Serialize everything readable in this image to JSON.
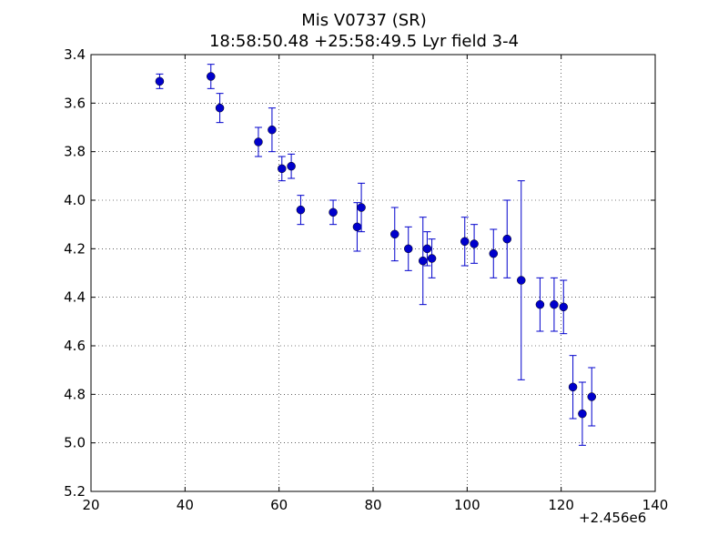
{
  "chart_data": {
    "type": "scatter",
    "title": "Mis V0737 (SR)",
    "subtitle": "18:58:50.48 +25:58:49.5 Lyr field 3-4",
    "xlabel": "",
    "ylabel": "",
    "x_offset_label": "+2.456e6",
    "xlim": [
      20,
      140
    ],
    "ylim": [
      3.4,
      5.2
    ],
    "y_inverted": true,
    "x_ticks": [
      20,
      40,
      60,
      80,
      100,
      120,
      140
    ],
    "y_ticks": [
      3.4,
      3.6,
      3.8,
      4.0,
      4.2,
      4.4,
      4.6,
      4.8,
      5.0,
      5.2
    ],
    "x_tick_labels": [
      "20",
      "40",
      "60",
      "80",
      "100",
      "120",
      "140"
    ],
    "y_tick_labels": [
      "3.4",
      "3.6",
      "3.8",
      "4.0",
      "4.2",
      "4.4",
      "4.6",
      "4.8",
      "5.0",
      "5.2"
    ],
    "grid": true,
    "marker_color": "#0000cc",
    "series": [
      {
        "points": [
          {
            "x": 34.6,
            "y": 3.51,
            "err": 0.03
          },
          {
            "x": 45.5,
            "y": 3.49,
            "err": 0.05
          },
          {
            "x": 47.4,
            "y": 3.62,
            "err": 0.06
          },
          {
            "x": 55.6,
            "y": 3.76,
            "err": 0.06
          },
          {
            "x": 58.5,
            "y": 3.71,
            "err": 0.09
          },
          {
            "x": 60.6,
            "y": 3.87,
            "err": 0.05
          },
          {
            "x": 62.6,
            "y": 3.86,
            "err": 0.05
          },
          {
            "x": 64.6,
            "y": 4.04,
            "err": 0.06
          },
          {
            "x": 71.5,
            "y": 4.05,
            "err": 0.05
          },
          {
            "x": 76.6,
            "y": 4.11,
            "err": 0.1
          },
          {
            "x": 77.5,
            "y": 4.03,
            "err": 0.1
          },
          {
            "x": 84.6,
            "y": 4.14,
            "err": 0.11
          },
          {
            "x": 87.5,
            "y": 4.2,
            "err": 0.09
          },
          {
            "x": 90.6,
            "y": 4.25,
            "err": 0.18
          },
          {
            "x": 91.5,
            "y": 4.2,
            "err": 0.07
          },
          {
            "x": 92.5,
            "y": 4.24,
            "err": 0.08
          },
          {
            "x": 99.5,
            "y": 4.17,
            "err": 0.1
          },
          {
            "x": 101.5,
            "y": 4.18,
            "err": 0.08
          },
          {
            "x": 105.6,
            "y": 4.22,
            "err": 0.1
          },
          {
            "x": 108.5,
            "y": 4.16,
            "err": 0.16
          },
          {
            "x": 111.5,
            "y": 4.33,
            "err": 0.41
          },
          {
            "x": 115.5,
            "y": 4.43,
            "err": 0.11
          },
          {
            "x": 118.5,
            "y": 4.43,
            "err": 0.11
          },
          {
            "x": 120.5,
            "y": 4.44,
            "err": 0.11
          },
          {
            "x": 122.5,
            "y": 4.77,
            "err": 0.13
          },
          {
            "x": 124.5,
            "y": 4.88,
            "err": 0.13
          },
          {
            "x": 126.5,
            "y": 4.81,
            "err": 0.12
          }
        ]
      }
    ]
  }
}
